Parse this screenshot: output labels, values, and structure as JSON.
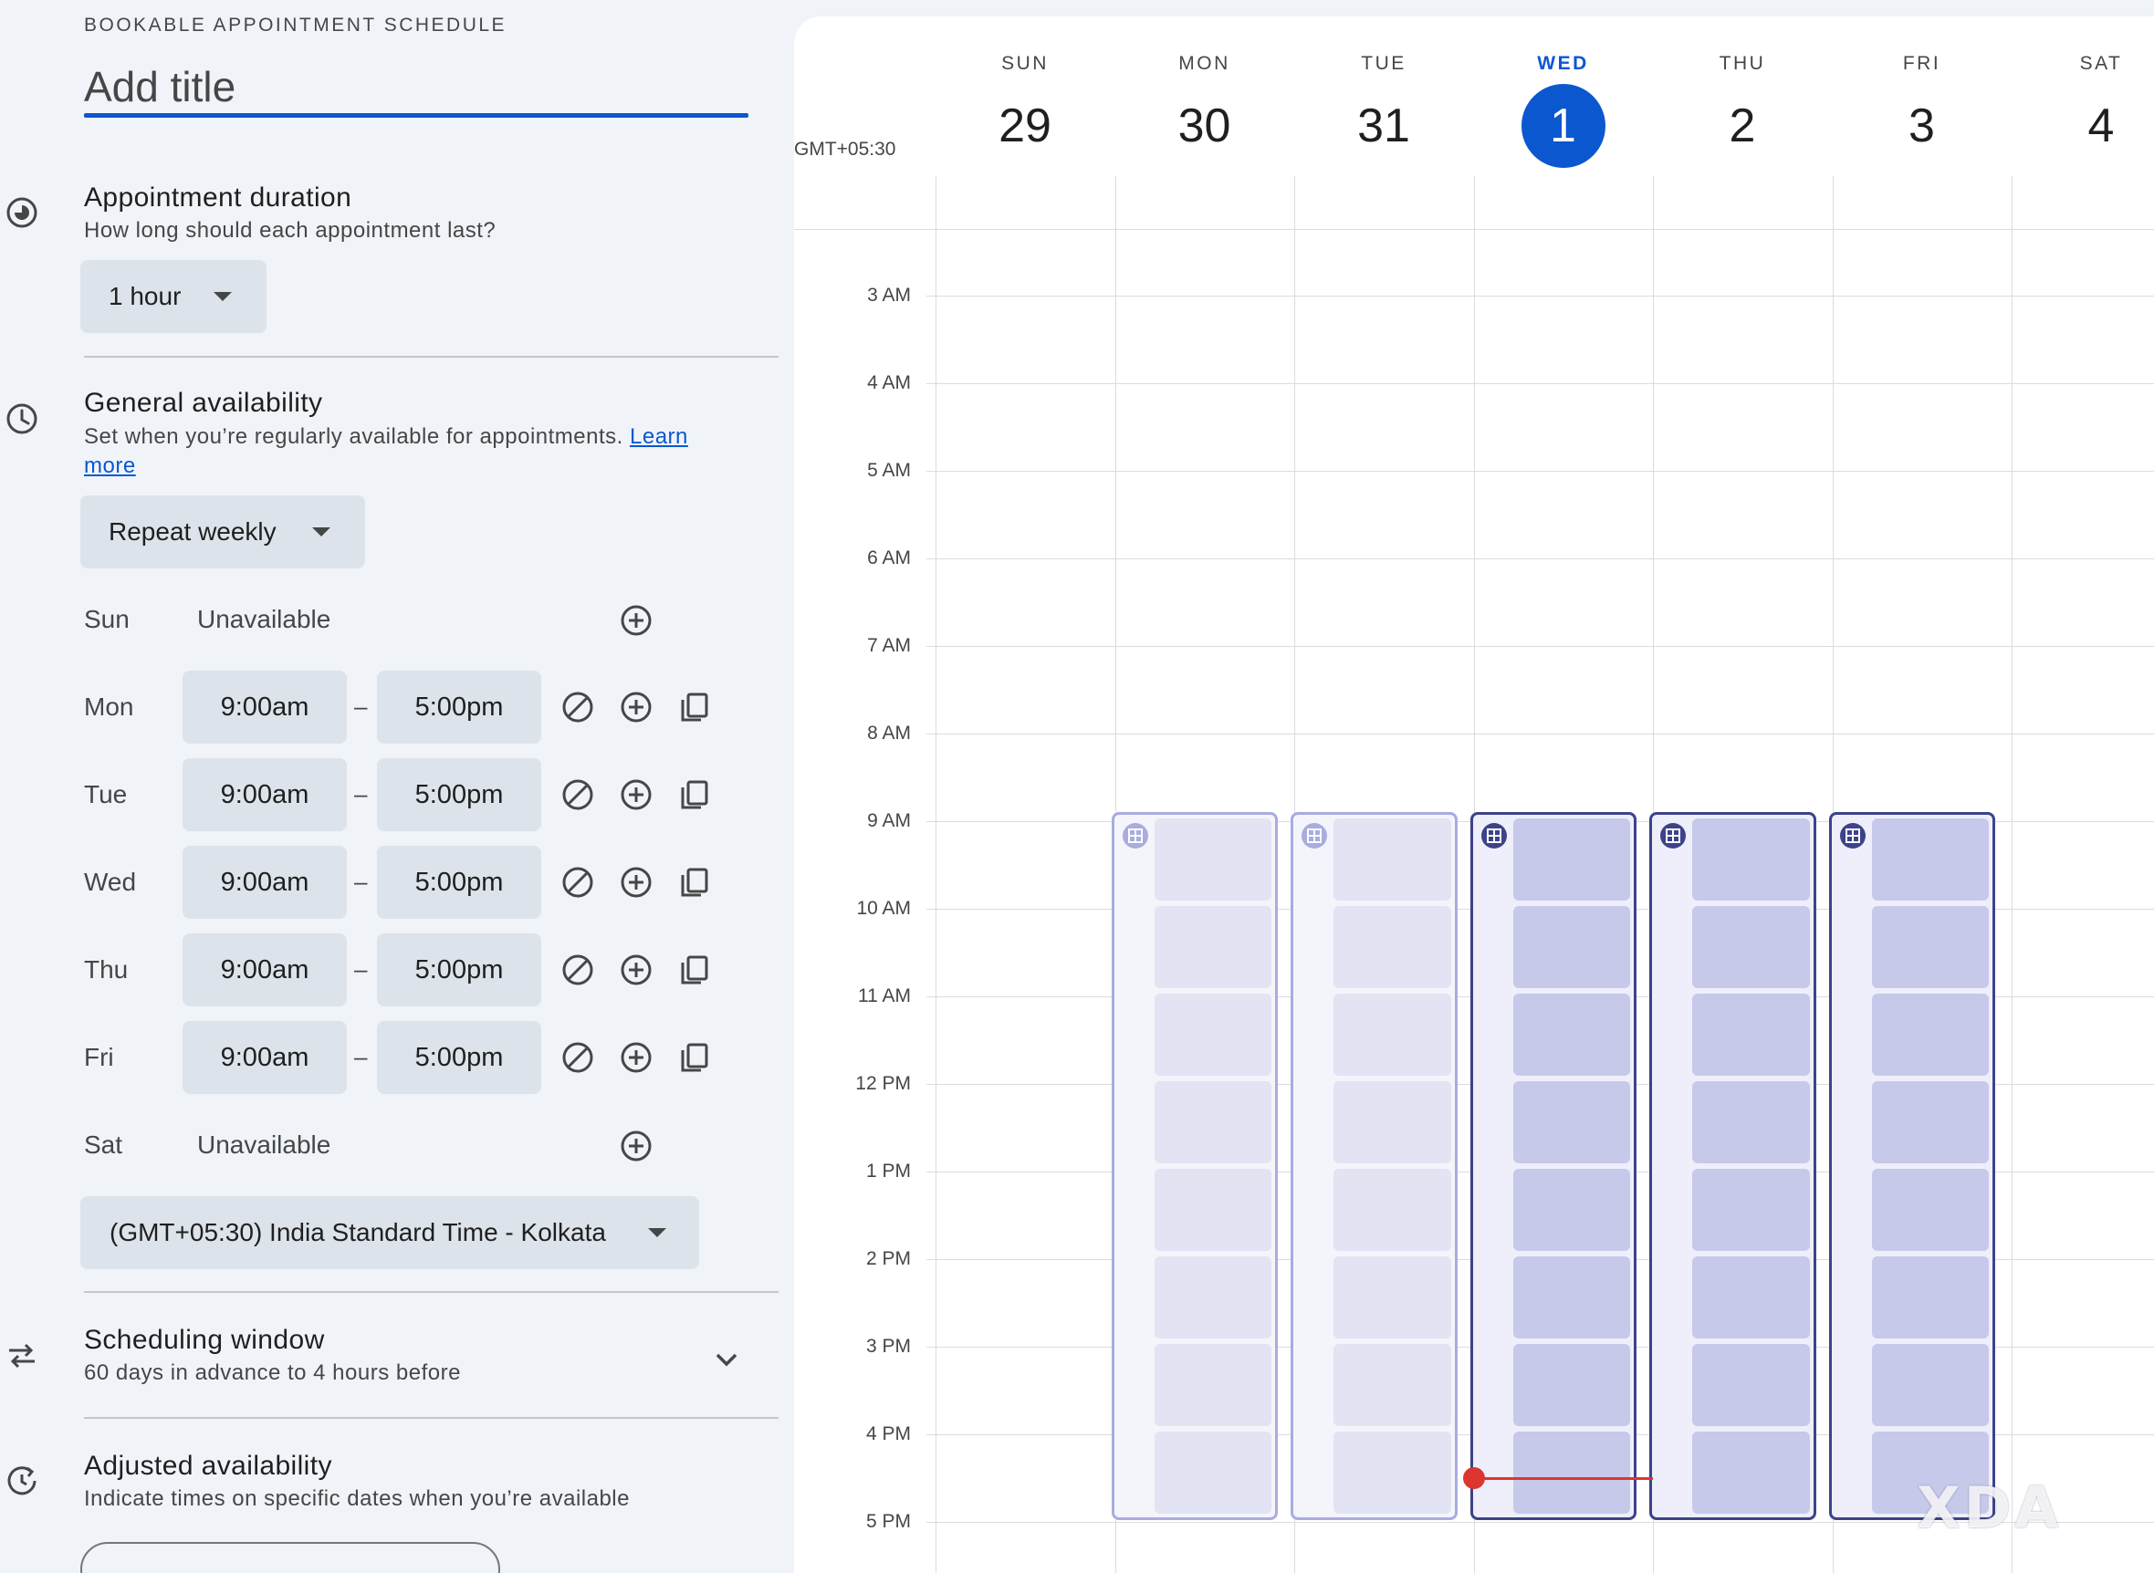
{
  "left": {
    "kicker": "BOOKABLE APPOINTMENT SCHEDULE",
    "title_placeholder": "Add title",
    "duration": {
      "title": "Appointment duration",
      "subtitle": "How long should each appointment last?",
      "value": "1 hour",
      "icon": "timelapse-icon"
    },
    "availability": {
      "title": "General availability",
      "subtitle": "Set when you’re regularly available for appointments.",
      "link": "Learn more",
      "repeat": "Repeat weekly",
      "icon": "clock-icon",
      "days": [
        {
          "day": "Sun",
          "unavailable": "Unavailable"
        },
        {
          "day": "Mon",
          "start": "9:00am",
          "end": "5:00pm"
        },
        {
          "day": "Tue",
          "start": "9:00am",
          "end": "5:00pm"
        },
        {
          "day": "Wed",
          "start": "9:00am",
          "end": "5:00pm"
        },
        {
          "day": "Thu",
          "start": "9:00am",
          "end": "5:00pm"
        },
        {
          "day": "Fri",
          "start": "9:00am",
          "end": "5:00pm"
        },
        {
          "day": "Sat",
          "unavailable": "Unavailable"
        }
      ],
      "dash": "–",
      "timezone": "(GMT+05:30) India Standard Time - Kolkata"
    },
    "scheduling": {
      "title": "Scheduling window",
      "subtitle": "60 days in advance to 4 hours before",
      "icon": "swap-horiz-icon"
    },
    "adjusted": {
      "title": "Adjusted availability",
      "subtitle": "Indicate times on specific dates when you’re available",
      "icon": "restore-clock-icon"
    }
  },
  "calendar": {
    "timezone_label": "GMT+05:30",
    "days": [
      {
        "name": "SUN",
        "num": "29"
      },
      {
        "name": "MON",
        "num": "30"
      },
      {
        "name": "TUE",
        "num": "31"
      },
      {
        "name": "WED",
        "num": "1",
        "today": true
      },
      {
        "name": "THU",
        "num": "2"
      },
      {
        "name": "FRI",
        "num": "3"
      },
      {
        "name": "SAT",
        "num": "4"
      }
    ],
    "hours": [
      "3 AM",
      "4 AM",
      "5 AM",
      "6 AM",
      "7 AM",
      "8 AM",
      "9 AM",
      "10 AM",
      "11 AM",
      "12 PM",
      "1 PM",
      "2 PM",
      "3 PM",
      "4 PM",
      "5 PM"
    ],
    "availability_blocks": [
      {
        "day": "MON",
        "start": "9 AM",
        "end": "5 PM",
        "state": "past"
      },
      {
        "day": "TUE",
        "start": "9 AM",
        "end": "5 PM",
        "state": "past"
      },
      {
        "day": "WED",
        "start": "9 AM",
        "end": "5 PM",
        "state": "future"
      },
      {
        "day": "THU",
        "start": "9 AM",
        "end": "5 PM",
        "state": "future"
      },
      {
        "day": "FRI",
        "start": "9 AM",
        "end": "5 PM",
        "state": "future"
      }
    ],
    "now_indicator": {
      "day": "WED",
      "time": "4:30 PM",
      "color": "#dc362e"
    },
    "accent": "#0b57d0"
  },
  "watermark": "XDA"
}
